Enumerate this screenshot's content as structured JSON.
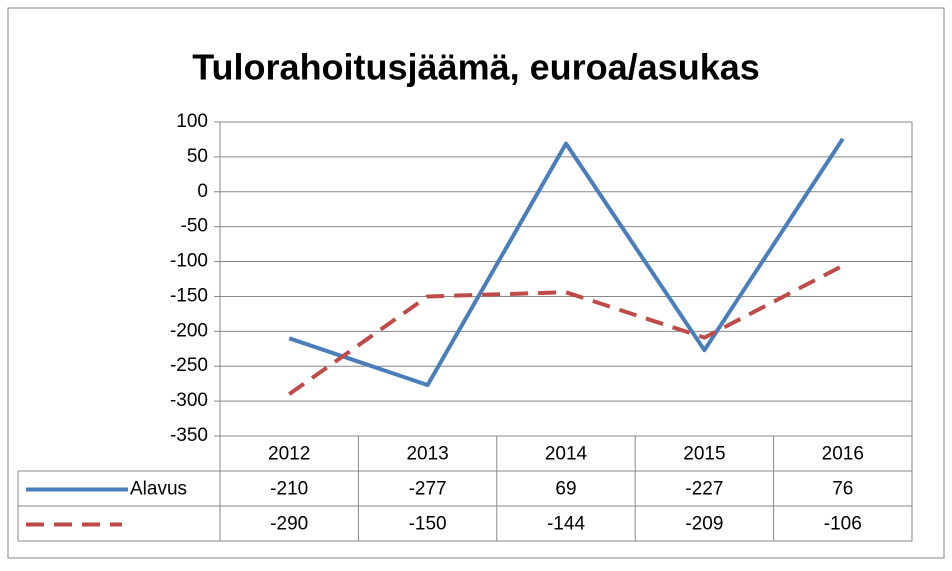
{
  "chart_data": {
    "type": "line",
    "title": "Tulorahoitusjäämä, euroa/asukas",
    "categories": [
      "2012",
      "2013",
      "2014",
      "2015",
      "2016"
    ],
    "series": [
      {
        "name": "Alavus",
        "color": "#4a7ebb",
        "dashed": false,
        "values": [
          -210,
          -277,
          69,
          -227,
          76
        ]
      },
      {
        "color": "#be4b48",
        "dashed": true,
        "values": [
          -290,
          -150,
          -144,
          -209,
          -106
        ]
      }
    ],
    "ylim": [
      -350,
      100
    ],
    "yticks": [
      -350,
      -300,
      -250,
      -200,
      -150,
      -100,
      -50,
      0,
      50,
      100
    ],
    "grid": true,
    "data_table": true
  }
}
